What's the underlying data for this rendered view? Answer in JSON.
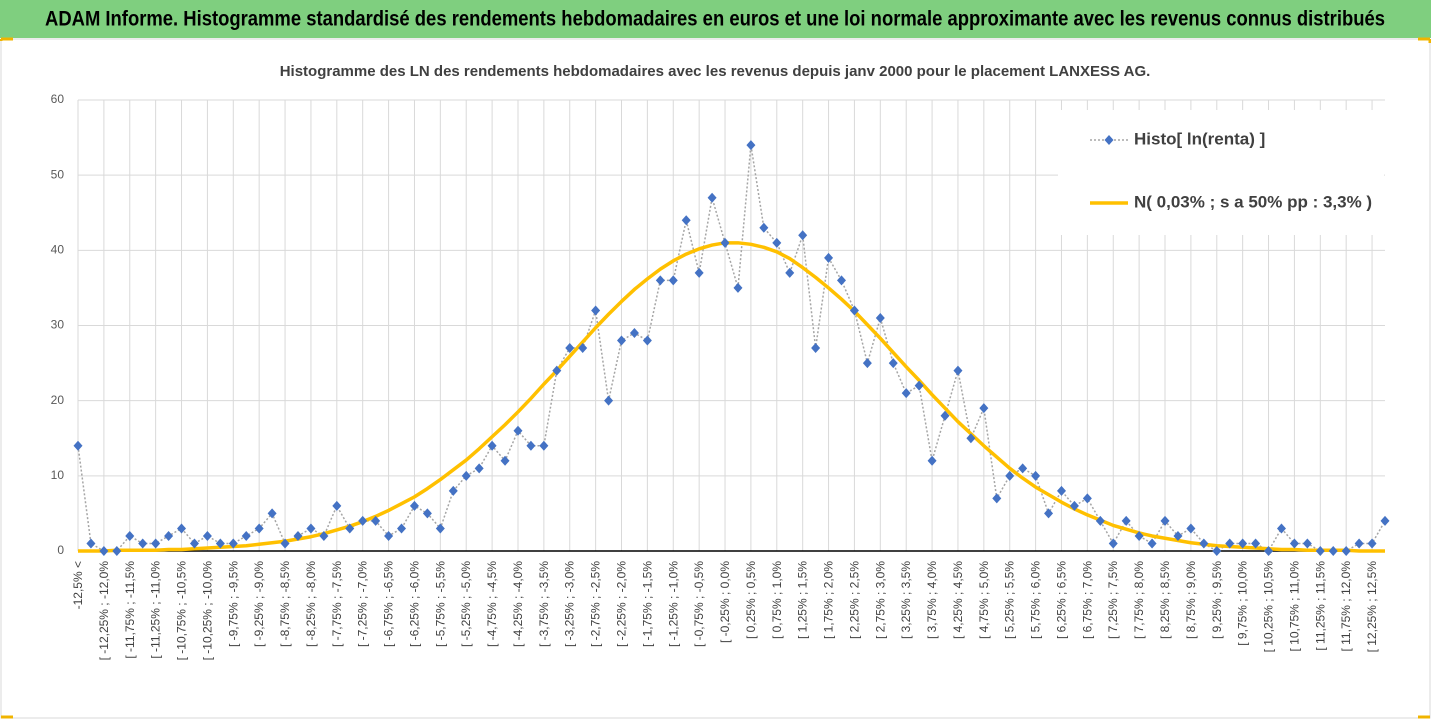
{
  "banner": {
    "title": "ADAM Informe. Histogramme standardisé des rendements hebdomadaires en euros et une loi normale approximante avec les revenus connus distribués"
  },
  "chart_data": {
    "type": "line",
    "title": "Histogramme des LN des rendements hebdomadaires avec les revenus depuis janv 2000 pour le placement LANXESS AG.",
    "categories": [
      "-12,5% <",
      null,
      "[ -12,25% ; -12,0%",
      null,
      "[ -11,75% ; -11,5%",
      null,
      "[ -11,25% ; -11,0%",
      null,
      "[ -10,75% ; -10,5%",
      null,
      "[ -10,25% ; -10,0%",
      null,
      "[ -9,75% ; -9,5%",
      null,
      "[ -9,25% ; -9,0%",
      null,
      "[ -8,75% ; -8,5%",
      null,
      "[ -8,25% ; -8,0%",
      null,
      "[ -7,75% ; -7,5%",
      null,
      "[ -7,25% ; -7,0%",
      null,
      "[ -6,75% ; -6,5%",
      null,
      "[ -6,25% ; -6,0%",
      null,
      "[ -5,75% ; -5,5%",
      null,
      "[ -5,25% ; -5,0%",
      null,
      "[ -4,75% ; -4,5%",
      null,
      "[ -4,25% ; -4,0%",
      null,
      "[ -3,75% ; -3,5%",
      null,
      "[ -3,25% ; -3,0%",
      null,
      "[ -2,75% ; -2,5%",
      null,
      "[ -2,25% ; -2,0%",
      null,
      "[ -1,75% ; -1,5%",
      null,
      "[ -1,25% ; -1,0%",
      null,
      "[ -0,75% ; -0,5%",
      null,
      "[ -0,25% ; 0,0%",
      null,
      "[ 0,25% ; 0,5%",
      null,
      "[ 0,75% ; 1,0%",
      null,
      "[ 1,25% ; 1,5%",
      null,
      "[ 1,75% ; 2,0%",
      null,
      "[ 2,25% ; 2,5%",
      null,
      "[ 2,75% ; 3,0%",
      null,
      "[ 3,25% ; 3,5%",
      null,
      "[ 3,75% ; 4,0%",
      null,
      "[ 4,25% ; 4,5%",
      null,
      "[ 4,75% ; 5,0%",
      null,
      "[ 5,25% ; 5,5%",
      null,
      "[ 5,75% ; 6,0%",
      null,
      "[ 6,25% ; 6,5%",
      null,
      "[ 6,75% ; 7,0%",
      null,
      "[ 7,25% ; 7,5%",
      null,
      "[ 7,75% ; 8,0%",
      null,
      "[ 8,25% ; 8,5%",
      null,
      "[ 8,75% ; 9,0%",
      null,
      "[ 9,25% ; 9,5%",
      null,
      "[ 9,75% ; 10,0%",
      null,
      "[ 10,25% ; 10,5%",
      null,
      "[ 10,75% ; 11,0%",
      null,
      "[ 11,25% ; 11,5%",
      null,
      "[ 11,75% ; 12,0%",
      null,
      "[ 12,25% ; 12,5%",
      null
    ],
    "series": [
      {
        "name": "Histo[ ln(renta) ]",
        "color": "#4472c4",
        "line_color": "#a5a5a5",
        "values": [
          14,
          1,
          0,
          0,
          2,
          1,
          1,
          2,
          3,
          1,
          2,
          1,
          1,
          2,
          3,
          5,
          1,
          2,
          3,
          2,
          6,
          3,
          4,
          4,
          2,
          3,
          6,
          5,
          3,
          8,
          10,
          11,
          14,
          12,
          16,
          14,
          14,
          24,
          27,
          27,
          32,
          20,
          28,
          29,
          28,
          36,
          36,
          44,
          37,
          47,
          41,
          35,
          54,
          43,
          41,
          37,
          42,
          27,
          39,
          36,
          32,
          25,
          31,
          25,
          21,
          22,
          12,
          18,
          24,
          15,
          19,
          7,
          10,
          11,
          10,
          5,
          8,
          6,
          7,
          4,
          1,
          4,
          2,
          1,
          4,
          2,
          3,
          1,
          0,
          1,
          1,
          1,
          0,
          3,
          1,
          1,
          0,
          0,
          0,
          1,
          1,
          4
        ]
      },
      {
        "name": "N( 0,03% ; s a 50% pp : 3,3% )",
        "color": "#ffc000",
        "values": [
          0.0,
          0.0,
          0.0,
          0.1,
          0.1,
          0.1,
          0.1,
          0.2,
          0.2,
          0.3,
          0.4,
          0.5,
          0.6,
          0.7,
          0.9,
          1.1,
          1.3,
          1.6,
          1.9,
          2.3,
          2.8,
          3.3,
          3.9,
          4.6,
          5.4,
          6.3,
          7.2,
          8.3,
          9.5,
          10.8,
          12.1,
          13.6,
          15.2,
          16.8,
          18.5,
          20.3,
          22.2,
          24.0,
          25.9,
          27.8,
          29.7,
          31.5,
          33.2,
          34.8,
          36.2,
          37.5,
          38.6,
          39.5,
          40.2,
          40.7,
          41.0,
          41.0,
          40.8,
          40.4,
          39.8,
          38.9,
          37.7,
          36.4,
          35.0,
          33.5,
          31.9,
          30.1,
          28.3,
          26.4,
          24.5,
          22.7,
          20.8,
          19.0,
          17.2,
          15.6,
          14.0,
          12.5,
          11.0,
          9.7,
          8.5,
          7.5,
          6.5,
          5.6,
          4.8,
          4.1,
          3.4,
          2.9,
          2.4,
          2.0,
          1.7,
          1.4,
          1.1,
          0.9,
          0.7,
          0.6,
          0.5,
          0.4,
          0.3,
          0.2,
          0.2,
          0.1,
          0.1,
          0.1,
          0.1,
          0.0,
          0.0,
          0.0
        ]
      }
    ],
    "ylim": [
      0,
      60
    ],
    "yticks": [
      0,
      10,
      20,
      30,
      40,
      50,
      60
    ],
    "grid": true
  }
}
